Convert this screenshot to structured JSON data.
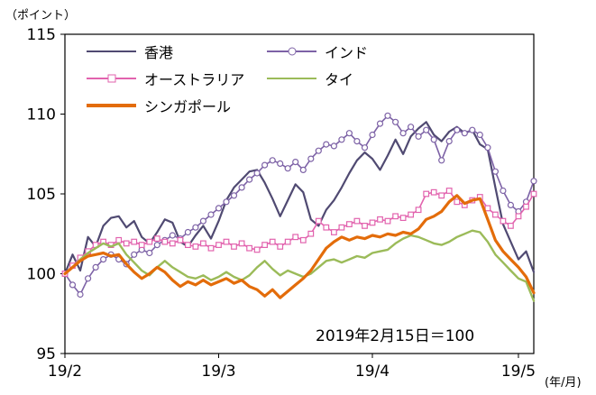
{
  "chart_data": {
    "type": "line",
    "y_unit": "（ポイント）",
    "x_unit": "(年/月)",
    "annotation": "2019年2月15日＝100",
    "ylim": [
      95,
      115
    ],
    "y_ticks": [
      95,
      100,
      105,
      110,
      115
    ],
    "x_tick_labels": [
      "19/2",
      "19/3",
      "19/4",
      "19/5"
    ],
    "x_tick_indices": [
      0,
      20,
      40,
      59
    ],
    "legend_position": "top-left-inside",
    "grid": false,
    "series": [
      {
        "id": "hongkong",
        "name": "香港",
        "color": "#504a72",
        "width": 2.2,
        "marker": "none",
        "values": [
          100.0,
          101.2,
          100.2,
          102.3,
          101.7,
          103.0,
          103.5,
          103.6,
          102.9,
          103.3,
          102.3,
          101.9,
          102.6,
          103.4,
          103.2,
          102.0,
          101.7,
          102.4,
          103.0,
          102.2,
          103.3,
          104.6,
          105.4,
          105.9,
          106.4,
          106.5,
          105.7,
          104.7,
          103.6,
          104.6,
          105.6,
          105.1,
          103.4,
          103.0,
          104.0,
          104.6,
          105.4,
          106.3,
          107.1,
          107.6,
          107.2,
          106.5,
          107.4,
          108.4,
          107.5,
          108.6,
          109.1,
          109.5,
          108.7,
          108.3,
          108.9,
          109.2,
          108.8,
          109.0,
          108.1,
          107.8,
          105.4,
          103.1,
          102.0,
          100.9,
          101.4,
          100.1
        ]
      },
      {
        "id": "india",
        "name": "インド",
        "color": "#7d62a6",
        "width": 1.6,
        "marker": "circle",
        "values": [
          100.0,
          99.3,
          98.7,
          99.7,
          100.4,
          100.9,
          101.2,
          100.9,
          100.6,
          101.2,
          101.5,
          101.3,
          101.8,
          102.1,
          102.4,
          102.2,
          102.6,
          102.9,
          103.3,
          103.7,
          104.1,
          104.5,
          104.9,
          105.4,
          105.9,
          106.3,
          106.8,
          107.1,
          106.9,
          106.6,
          107.0,
          106.5,
          107.2,
          107.7,
          108.1,
          108.0,
          108.4,
          108.8,
          108.3,
          107.9,
          108.7,
          109.4,
          109.9,
          109.5,
          108.8,
          109.2,
          108.6,
          109.0,
          108.4,
          107.1,
          108.3,
          109.0,
          108.8,
          109.0,
          108.7,
          107.9,
          106.4,
          105.2,
          104.3,
          103.9,
          104.5,
          105.8
        ]
      },
      {
        "id": "australia",
        "name": "オーストラリア",
        "color": "#e263ae",
        "width": 1.6,
        "marker": "square",
        "values": [
          100.0,
          100.5,
          101.0,
          101.4,
          101.8,
          102.0,
          101.8,
          102.1,
          101.9,
          102.0,
          101.8,
          102.0,
          102.2,
          102.0,
          101.9,
          102.1,
          101.8,
          101.7,
          101.9,
          101.6,
          101.8,
          102.0,
          101.7,
          101.9,
          101.6,
          101.5,
          101.8,
          102.0,
          101.7,
          102.0,
          102.3,
          102.1,
          102.5,
          103.3,
          102.9,
          102.6,
          102.9,
          103.1,
          103.3,
          103.0,
          103.2,
          103.4,
          103.3,
          103.6,
          103.5,
          103.7,
          104.0,
          105.0,
          105.1,
          104.9,
          105.2,
          104.5,
          104.3,
          104.6,
          104.8,
          104.1,
          103.7,
          103.3,
          103.0,
          103.6,
          104.2,
          105.0
        ]
      },
      {
        "id": "thailand",
        "name": "タイ",
        "color": "#9bbb59",
        "width": 2.4,
        "marker": "none",
        "values": [
          100.0,
          100.4,
          100.9,
          101.3,
          101.6,
          101.9,
          101.7,
          101.9,
          101.2,
          100.7,
          100.2,
          99.9,
          100.4,
          100.8,
          100.4,
          100.1,
          99.8,
          99.7,
          99.9,
          99.6,
          99.8,
          100.1,
          99.8,
          99.6,
          99.9,
          100.4,
          100.8,
          100.3,
          99.9,
          100.2,
          100.0,
          99.8,
          100.0,
          100.4,
          100.8,
          100.9,
          100.7,
          100.9,
          101.1,
          101.0,
          101.3,
          101.4,
          101.5,
          101.9,
          102.2,
          102.4,
          102.3,
          102.1,
          101.9,
          101.8,
          102.0,
          102.3,
          102.5,
          102.7,
          102.6,
          102.0,
          101.2,
          100.7,
          100.2,
          99.7,
          99.5,
          98.3
        ]
      },
      {
        "id": "singapore",
        "name": "シンガポール",
        "color": "#e36c0a",
        "width": 3.2,
        "marker": "none",
        "values": [
          100.0,
          100.4,
          100.8,
          101.1,
          101.2,
          101.3,
          101.1,
          101.2,
          100.6,
          100.1,
          99.7,
          100.0,
          100.4,
          100.1,
          99.6,
          99.2,
          99.5,
          99.3,
          99.6,
          99.3,
          99.5,
          99.7,
          99.4,
          99.6,
          99.2,
          99.0,
          98.6,
          99.0,
          98.5,
          98.9,
          99.3,
          99.7,
          100.2,
          100.9,
          101.6,
          102.0,
          102.3,
          102.1,
          102.3,
          102.2,
          102.4,
          102.3,
          102.5,
          102.4,
          102.6,
          102.5,
          102.8,
          103.4,
          103.6,
          103.9,
          104.5,
          104.9,
          104.4,
          104.6,
          104.7,
          103.4,
          102.1,
          101.4,
          100.9,
          100.4,
          99.8,
          98.8
        ]
      }
    ]
  }
}
